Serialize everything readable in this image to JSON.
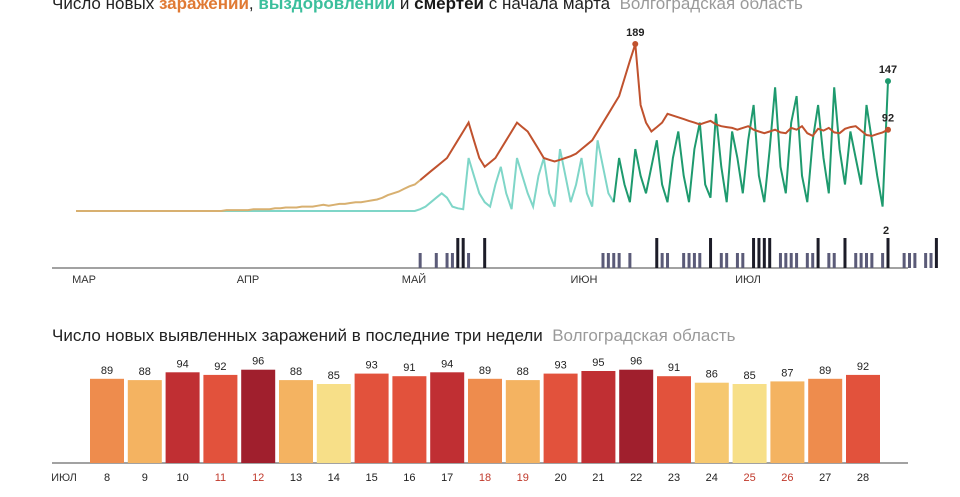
{
  "top_chart": {
    "title": {
      "prefix": "Число новых ",
      "infections": "заражений",
      "sep1": ", ",
      "recoveries": "выздоровлений",
      "sep2": " и ",
      "deaths": "смертей",
      "suffix": " с начала марта",
      "region": "Волгоградская область"
    },
    "month_labels": [
      "МАР",
      "АПР",
      "МАЙ",
      "ИЮН",
      "ИЮЛ"
    ],
    "annotations": {
      "peak_infections": "189",
      "last_recoveries": "147",
      "last_infections": "92",
      "last_deaths": "2"
    },
    "colors": {
      "infections_early": "#d8b070",
      "infections": "#c0522e",
      "recoveries_light": "#7fd6c8",
      "recoveries_dark": "#1e9a6e",
      "deaths": "#1c1c28",
      "deaths_light": "#5b5b78"
    }
  },
  "bottom_chart": {
    "title": {
      "text": "Число новых выявленных заражений в последние три недели",
      "region": "Волгоградская область"
    },
    "month_label": "ИЮЛ"
  },
  "chart_data": [
    {
      "type": "line",
      "x_range": [
        "2020-03-01",
        "2020-07-28"
      ],
      "ylim": [
        0,
        200
      ],
      "series": [
        {
          "name": "заражений",
          "values": [
            0,
            0,
            0,
            0,
            0,
            0,
            0,
            0,
            0,
            0,
            0,
            0,
            0,
            0,
            0,
            0,
            0,
            0,
            0,
            0,
            0,
            0,
            0,
            0,
            0,
            0,
            0,
            0,
            1,
            1,
            1,
            1,
            1,
            2,
            2,
            2,
            2,
            3,
            3,
            4,
            4,
            4,
            5,
            5,
            5,
            6,
            7,
            6,
            7,
            8,
            8,
            9,
            10,
            10,
            11,
            12,
            13,
            15,
            18,
            20,
            22,
            25,
            28,
            30,
            35,
            40,
            45,
            50,
            55,
            60,
            70,
            80,
            90,
            100,
            80,
            60,
            50,
            55,
            60,
            70,
            80,
            90,
            100,
            95,
            90,
            80,
            70,
            60,
            58,
            56,
            58,
            60,
            62,
            65,
            70,
            75,
            80,
            90,
            100,
            110,
            120,
            130,
            150,
            170,
            189,
            120,
            100,
            90,
            95,
            100,
            110,
            108,
            106,
            104,
            102,
            100,
            98,
            100,
            102,
            98,
            96,
            95,
            94,
            92,
            94,
            96,
            92,
            90,
            88,
            90,
            92,
            89,
            88,
            94,
            92,
            96,
            88,
            85,
            93,
            91,
            94,
            89,
            88,
            93,
            95,
            96,
            91,
            86,
            85,
            87,
            89,
            92
          ]
        },
        {
          "name": "выздоровлений",
          "values": [
            0,
            0,
            0,
            0,
            0,
            0,
            0,
            0,
            0,
            0,
            0,
            0,
            0,
            0,
            0,
            0,
            0,
            0,
            0,
            0,
            0,
            0,
            0,
            0,
            0,
            0,
            0,
            0,
            0,
            0,
            0,
            0,
            0,
            0,
            0,
            0,
            0,
            0,
            0,
            0,
            0,
            0,
            0,
            0,
            0,
            0,
            0,
            0,
            0,
            0,
            0,
            0,
            0,
            0,
            0,
            0,
            0,
            0,
            0,
            0,
            0,
            0,
            0,
            0,
            2,
            5,
            10,
            15,
            20,
            15,
            5,
            3,
            2,
            60,
            40,
            20,
            10,
            5,
            30,
            50,
            20,
            2,
            60,
            40,
            20,
            5,
            40,
            60,
            20,
            5,
            70,
            40,
            10,
            30,
            60,
            20,
            5,
            80,
            50,
            20,
            10,
            60,
            30,
            10,
            70,
            40,
            20,
            50,
            80,
            30,
            10,
            60,
            90,
            40,
            10,
            70,
            100,
            30,
            15,
            110,
            50,
            10,
            90,
            60,
            20,
            80,
            120,
            40,
            10,
            70,
            140,
            50,
            20,
            100,
            130,
            40,
            10,
            80,
            120,
            60,
            20,
            140,
            70,
            30,
            90,
            60,
            30,
            120,
            80,
            40,
            5,
            147
          ]
        },
        {
          "name": "смертей",
          "values": [
            0,
            0,
            0,
            0,
            0,
            0,
            0,
            0,
            0,
            0,
            0,
            0,
            0,
            0,
            0,
            0,
            0,
            0,
            0,
            0,
            0,
            0,
            0,
            0,
            0,
            0,
            0,
            0,
            0,
            0,
            0,
            0,
            0,
            0,
            0,
            0,
            0,
            0,
            0,
            0,
            0,
            0,
            0,
            0,
            0,
            0,
            0,
            0,
            0,
            0,
            0,
            0,
            0,
            0,
            0,
            0,
            0,
            0,
            0,
            0,
            0,
            0,
            0,
            0,
            1,
            0,
            0,
            1,
            0,
            1,
            1,
            2,
            2,
            1,
            0,
            0,
            2,
            0,
            0,
            0,
            0,
            0,
            0,
            0,
            0,
            0,
            0,
            0,
            0,
            0,
            0,
            0,
            0,
            0,
            0,
            0,
            0,
            0,
            1,
            1,
            1,
            1,
            0,
            1,
            0,
            0,
            0,
            0,
            2,
            1,
            1,
            0,
            0,
            1,
            1,
            1,
            1,
            0,
            2,
            0,
            1,
            1,
            0,
            1,
            1,
            0,
            2,
            2,
            2,
            2,
            0,
            1,
            1,
            1,
            1,
            0,
            1,
            1,
            2,
            0,
            1,
            1,
            0,
            2,
            0,
            1,
            1,
            1,
            1,
            0,
            1,
            2,
            0,
            0,
            1,
            1,
            1,
            0,
            1,
            1,
            2
          ]
        }
      ]
    },
    {
      "type": "bar",
      "categories": [
        "8",
        "9",
        "10",
        "11",
        "12",
        "13",
        "14",
        "15",
        "16",
        "17",
        "18",
        "19",
        "20",
        "21",
        "22",
        "23",
        "24",
        "25",
        "26",
        "27",
        "28"
      ],
      "values": [
        89,
        88,
        94,
        92,
        96,
        88,
        85,
        93,
        91,
        94,
        89,
        88,
        93,
        95,
        96,
        91,
        86,
        85,
        87,
        89,
        92
      ],
      "weekend_days": [
        "11",
        "12",
        "18",
        "19",
        "25",
        "26"
      ],
      "ylim": [
        80,
        96
      ],
      "color_scale": [
        "#f6dc85",
        "#f0a352",
        "#e2523c",
        "#a01f2d"
      ]
    }
  ]
}
